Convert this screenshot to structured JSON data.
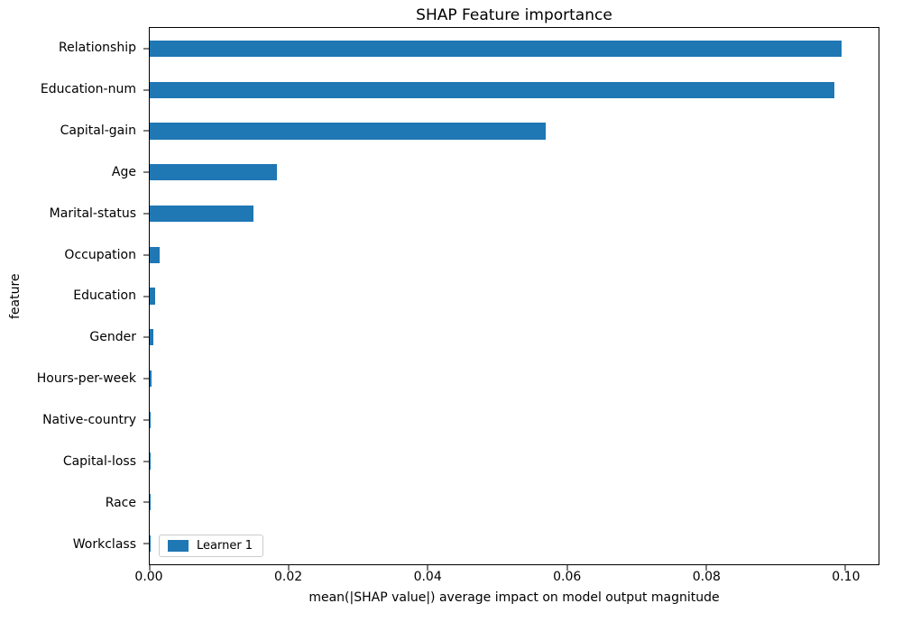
{
  "chart_data": {
    "type": "bar",
    "orientation": "horizontal",
    "title": "SHAP Feature importance",
    "xlabel": "mean(|SHAP value|) average impact on model output magnitude",
    "ylabel": "feature",
    "categories": [
      "Relationship",
      "Education-num",
      "Capital-gain",
      "Age",
      "Marital-status",
      "Occupation",
      "Education",
      "Gender",
      "Hours-per-week",
      "Native-country",
      "Capital-loss",
      "Race",
      "Workclass"
    ],
    "series": [
      {
        "name": "Learner 1",
        "values": [
          0.0995,
          0.0985,
          0.057,
          0.0183,
          0.0149,
          0.0014,
          0.0008,
          0.0005,
          0.0003,
          0.00012,
          6e-05,
          4e-05,
          3e-05
        ]
      }
    ],
    "xlim": [
      0,
      0.1048
    ],
    "xticks": [
      0.0,
      0.02,
      0.04,
      0.06,
      0.08,
      0.1
    ],
    "xtick_labels": [
      "0.00",
      "0.02",
      "0.04",
      "0.06",
      "0.08",
      "0.10"
    ],
    "legend": {
      "position": "lower left",
      "entries": [
        "Learner 1"
      ]
    },
    "bar_color": "#1f77b4",
    "grid": false
  }
}
